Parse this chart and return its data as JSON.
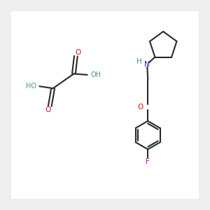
{
  "bg_color": "#eeeeee",
  "bond_color": "#2a2a2a",
  "N_color": "#2020cc",
  "O_color": "#cc1111",
  "F_color": "#bb00bb",
  "H_color": "#4a9090",
  "bond_width": 1.5,
  "fig_w": 3.0,
  "fig_h": 3.0,
  "dpi": 100,
  "xlim": [
    0,
    10
  ],
  "ylim": [
    0,
    10
  ]
}
